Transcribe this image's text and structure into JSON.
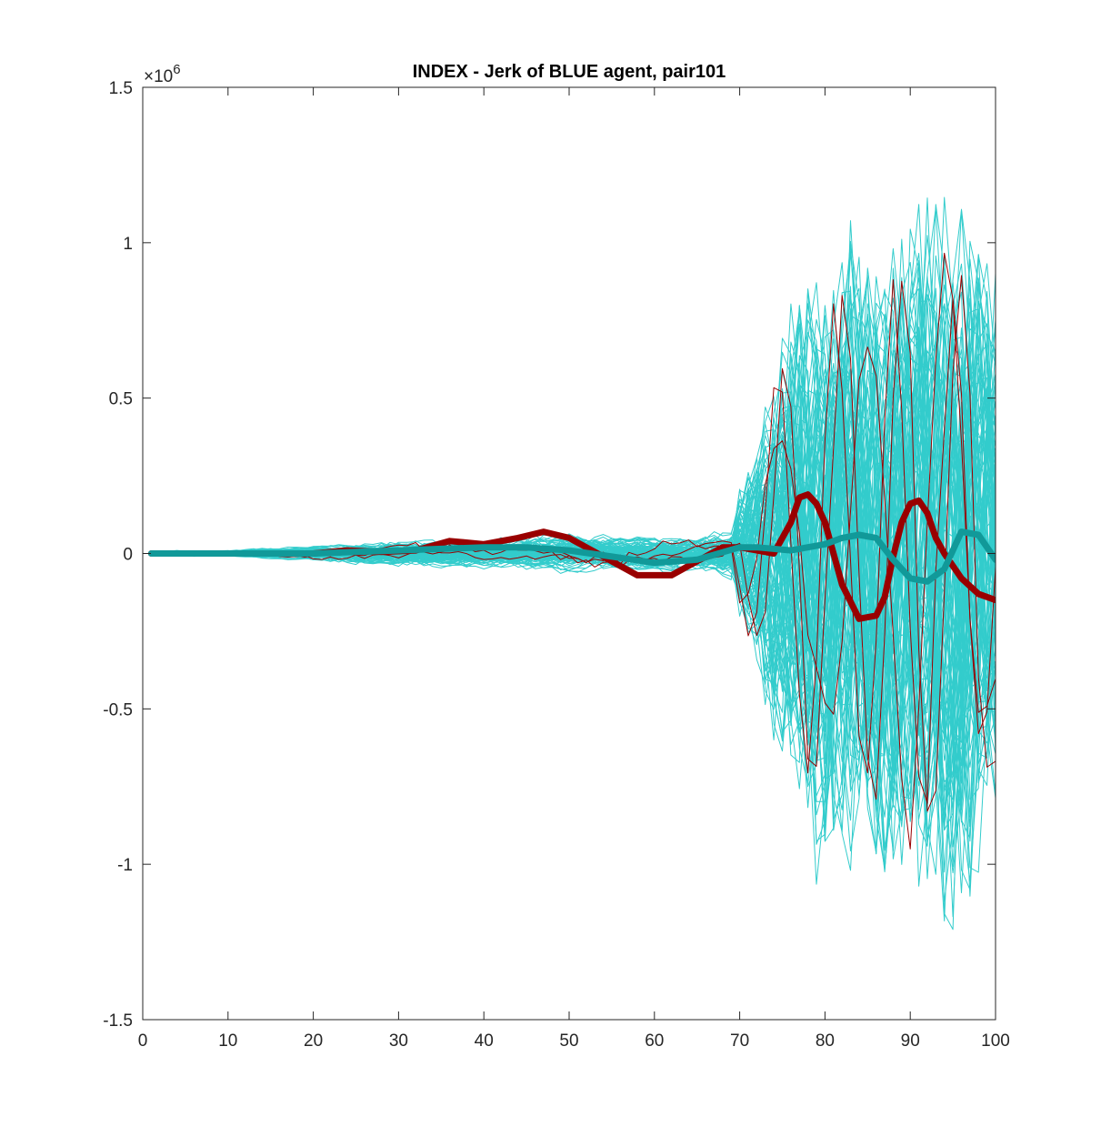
{
  "chart_data": {
    "type": "line",
    "title": "INDEX - Jerk of BLUE agent, pair101",
    "xlabel": "",
    "ylabel": "",
    "xlim": [
      0,
      100
    ],
    "ylim": [
      -1.5,
      1.5
    ],
    "y_exponent_label": "×10",
    "y_exponent_power": "6",
    "x_ticks": [
      "0",
      "10",
      "20",
      "30",
      "40",
      "50",
      "60",
      "70",
      "80",
      "90",
      "100"
    ],
    "y_ticks": [
      "-1.5",
      "-1",
      "-0.5",
      "0",
      "0.5",
      "1",
      "1.5"
    ],
    "x_tick_values": [
      0,
      10,
      20,
      30,
      40,
      50,
      60,
      70,
      80,
      90,
      100
    ],
    "y_tick_values": [
      -1.5,
      -1,
      -0.5,
      0,
      0.5,
      1,
      1.5
    ],
    "grid": false,
    "box": true,
    "colors": {
      "trial_lines": "#33cccc",
      "red_trials": "#990000",
      "red_mean": "#990000",
      "cyan_mean": "#119999",
      "axis": "#262626"
    },
    "series": [
      {
        "role": "mean",
        "color": "#990000",
        "x": [
          1,
          5,
          10,
          15,
          20,
          24,
          28,
          32,
          36,
          40,
          44,
          47,
          50,
          54,
          58,
          62,
          66,
          68,
          70,
          72,
          74,
          76,
          77,
          78,
          79,
          80,
          82,
          84,
          86,
          87,
          88,
          89,
          90,
          91,
          92,
          93,
          94,
          96,
          98,
          100
        ],
        "y": [
          0,
          0,
          0,
          0,
          0,
          0.01,
          0.005,
          0.01,
          0.04,
          0.03,
          0.05,
          0.07,
          0.05,
          -0.01,
          -0.07,
          -0.07,
          -0.01,
          0.02,
          0.02,
          0.01,
          0.0,
          0.1,
          0.18,
          0.19,
          0.16,
          0.1,
          -0.1,
          -0.21,
          -0.2,
          -0.14,
          -0.01,
          0.1,
          0.16,
          0.17,
          0.13,
          0.05,
          0.0,
          -0.08,
          -0.13,
          -0.15
        ]
      },
      {
        "role": "mean",
        "color": "#119999",
        "x": [
          1,
          5,
          10,
          15,
          20,
          25,
          30,
          35,
          40,
          45,
          50,
          55,
          60,
          65,
          70,
          72,
          76,
          78,
          80,
          82,
          84,
          86,
          88,
          90,
          92,
          94,
          95,
          96,
          98,
          100
        ],
        "y": [
          0,
          0,
          0,
          0,
          0,
          0.005,
          0.01,
          0.015,
          0.02,
          0.02,
          0.01,
          -0.01,
          -0.03,
          -0.02,
          0.02,
          0.02,
          0.01,
          0.02,
          0.03,
          0.05,
          0.06,
          0.05,
          -0.02,
          -0.08,
          -0.09,
          -0.05,
          0.01,
          0.07,
          0.06,
          -0.02
        ]
      }
    ],
    "trial_bundle": {
      "trial_count": 100,
      "red_trial_count": 3,
      "amplitude_envelope": {
        "x": [
          1,
          10,
          20,
          30,
          40,
          50,
          60,
          65,
          70,
          72,
          74,
          76,
          78,
          80,
          84,
          88,
          92,
          96,
          100
        ],
        "y": [
          0.02,
          0.02,
          0.05,
          0.08,
          0.1,
          0.12,
          0.12,
          0.12,
          0.18,
          0.3,
          0.55,
          0.65,
          0.8,
          0.85,
          0.85,
          0.9,
          0.95,
          1.0,
          0.75
        ]
      }
    }
  }
}
